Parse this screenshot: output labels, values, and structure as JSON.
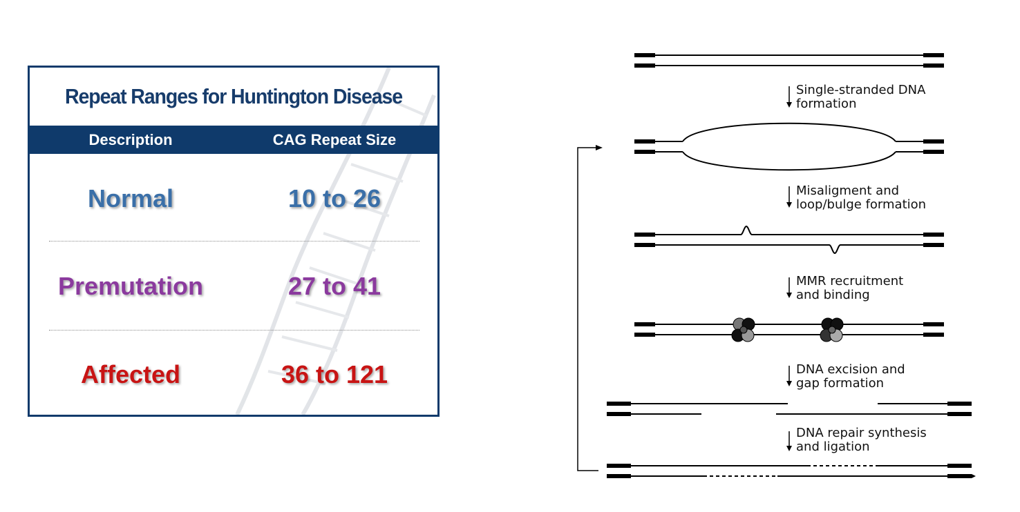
{
  "table": {
    "title": "Repeat Ranges for Huntington Disease",
    "headers": {
      "description": "Description",
      "size": "CAG Repeat Size"
    },
    "rows": [
      {
        "description": "Normal",
        "size": "10 to 26",
        "color": "#3a6fa8"
      },
      {
        "description": "Premutation",
        "size": "27 to 41",
        "color": "#8b3a9e"
      },
      {
        "description": "Affected",
        "size": "36 to 121",
        "color": "#c81414"
      }
    ],
    "colors": {
      "border": "#0f3a6b",
      "header_bg": "#0f3a6b",
      "title": "#173c6b"
    }
  },
  "diagram": {
    "steps": [
      {
        "line1": "Single-stranded DNA",
        "line2": "formation"
      },
      {
        "line1": "Misaligment and",
        "line2": "loop/bulge formation"
      },
      {
        "line1": "MMR recruitment",
        "line2": "and binding"
      },
      {
        "line1": "DNA excision and",
        "line2": "gap formation"
      },
      {
        "line1": "DNA repair synthesis",
        "line2": "and ligation"
      }
    ]
  }
}
